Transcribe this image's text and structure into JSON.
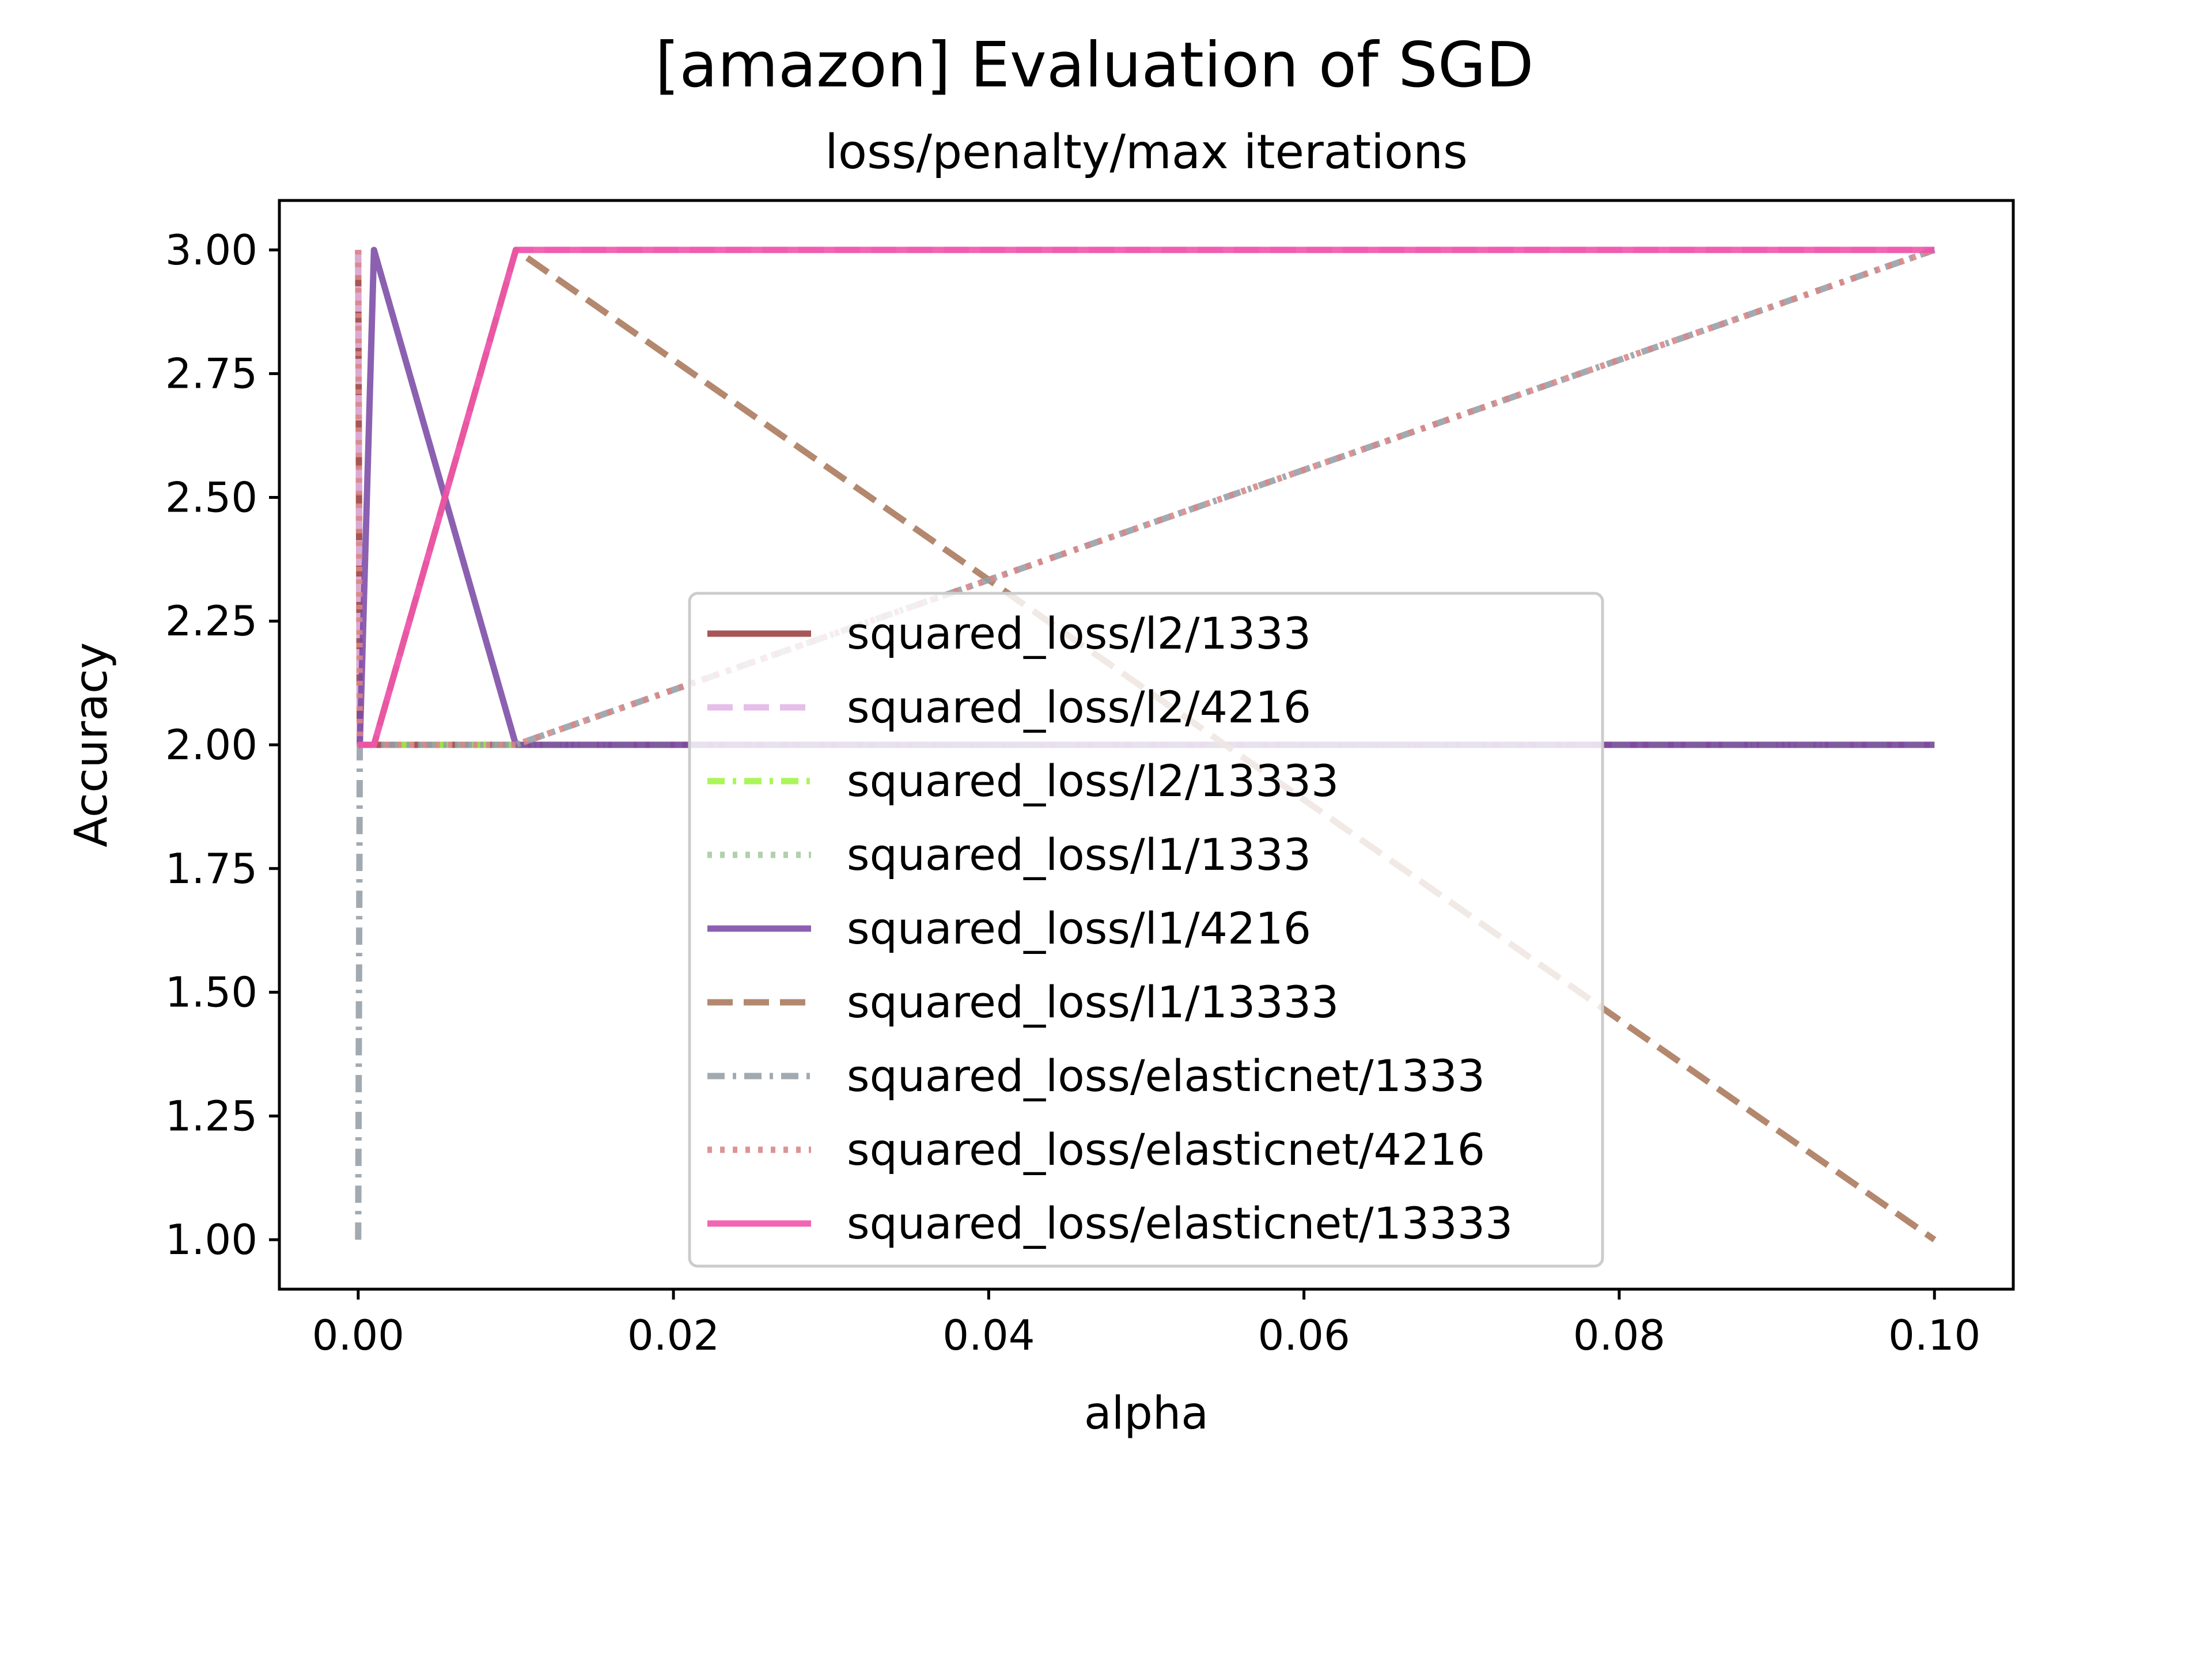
{
  "chart_data": {
    "type": "line",
    "title": "[amazon] Evaluation of SGD",
    "subtitle": "loss/penalty/max iterations",
    "xlabel": "alpha",
    "ylabel": "Accuracy",
    "xlim": [
      -0.005,
      0.105
    ],
    "ylim": [
      0.9,
      3.1
    ],
    "xticks": [
      0.0,
      0.02,
      0.04,
      0.06,
      0.08,
      0.1
    ],
    "xtick_labels": [
      "0.00",
      "0.02",
      "0.04",
      "0.06",
      "0.08",
      "0.10"
    ],
    "yticks": [
      1.0,
      1.25,
      1.5,
      1.75,
      2.0,
      2.25,
      2.5,
      2.75,
      3.0
    ],
    "ytick_labels": [
      "1.00",
      "1.25",
      "1.50",
      "1.75",
      "2.00",
      "2.25",
      "2.50",
      "2.75",
      "3.00"
    ],
    "grid": false,
    "legend_position": "lower-center",
    "x": [
      0.0,
      0.0001,
      0.001,
      0.01,
      0.1
    ],
    "series": [
      {
        "name": "squared_loss/l2/1333",
        "values": [
          3,
          2,
          2,
          2,
          2
        ],
        "color": "#9b3f3f",
        "dash": "solid"
      },
      {
        "name": "squared_loss/l2/4216",
        "values": [
          3,
          2,
          2,
          3,
          3
        ],
        "color": "#e3b5e6",
        "dash": "dashed"
      },
      {
        "name": "squared_loss/l2/13333",
        "values": [
          2,
          2,
          2,
          2,
          2
        ],
        "color": "#9ef542",
        "dash": "dashdot"
      },
      {
        "name": "squared_loss/l1/1333",
        "values": [
          2,
          2,
          2,
          2,
          2
        ],
        "color": "#a6c9a0",
        "dash": "dotted"
      },
      {
        "name": "squared_loss/l1/4216",
        "values": [
          2,
          2,
          3,
          2,
          2
        ],
        "color": "#7b4aa6",
        "dash": "solid"
      },
      {
        "name": "squared_loss/l1/13333",
        "values": [
          2,
          2,
          2,
          3,
          1
        ],
        "color": "#a8775a",
        "dash": "dashed"
      },
      {
        "name": "squared_loss/elasticnet/1333",
        "values": [
          1,
          2,
          2,
          2,
          3
        ],
        "color": "#959ea6",
        "dash": "dashdot"
      },
      {
        "name": "squared_loss/elasticnet/4216",
        "values": [
          3,
          2,
          2,
          2,
          3
        ],
        "color": "#d98585",
        "dash": "dotted"
      },
      {
        "name": "squared_loss/elasticnet/13333",
        "values": [
          2,
          2,
          2,
          3,
          3
        ],
        "color": "#f050a8",
        "dash": "solid"
      }
    ]
  }
}
